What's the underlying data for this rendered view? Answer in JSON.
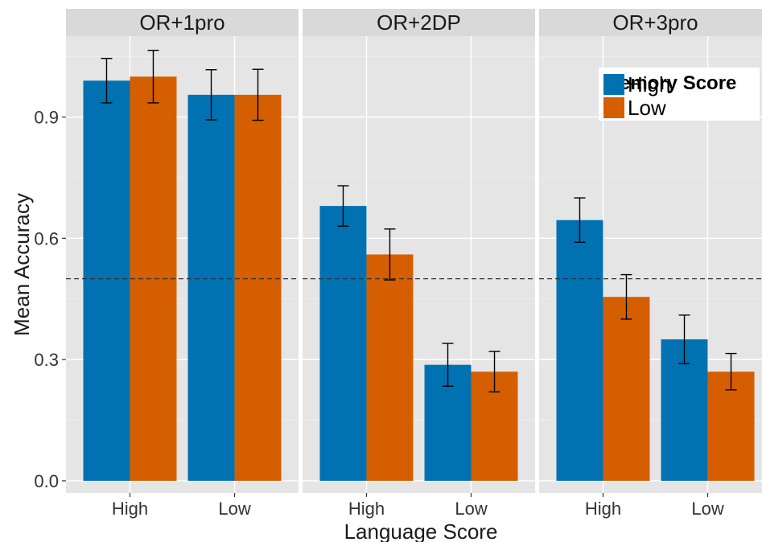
{
  "chart_data": {
    "type": "bar",
    "facets": [
      {
        "label": "OR+1pro",
        "categories": [
          "High",
          "Low"
        ],
        "series": [
          {
            "name": "High",
            "values": [
              0.99,
              0.955
            ],
            "error": [
              0.055,
              0.062
            ]
          },
          {
            "name": "Low",
            "values": [
              1.0,
              0.955
            ],
            "error": [
              0.065,
              0.063
            ]
          }
        ]
      },
      {
        "label": "OR+2DP",
        "categories": [
          "High",
          "Low"
        ],
        "series": [
          {
            "name": "High",
            "values": [
              0.68,
              0.287
            ],
            "error": [
              0.05,
              0.053
            ]
          },
          {
            "name": "Low",
            "values": [
              0.56,
              0.27
            ],
            "error": [
              0.063,
              0.05
            ]
          }
        ]
      },
      {
        "label": "OR+3pro",
        "categories": [
          "High",
          "Low"
        ],
        "series": [
          {
            "name": "High",
            "values": [
              0.645,
              0.35
            ],
            "error": [
              0.055,
              0.06
            ]
          },
          {
            "name": "Low",
            "values": [
              0.455,
              0.27
            ],
            "error": [
              0.055,
              0.045
            ]
          }
        ]
      }
    ],
    "xlabel": "Language Score",
    "ylabel": "Mean Accuracy",
    "ylim": [
      -0.03,
      1.1
    ],
    "yticks": [
      "0.0",
      "0.3",
      "0.6",
      "0.9"
    ],
    "reference_line": 0.5,
    "legend": {
      "title": "Memory Score",
      "entries": [
        "High",
        "Low"
      ],
      "position": "top-right"
    },
    "colors": {
      "High": "#0072b2",
      "Low": "#d55e00"
    },
    "grid": true
  }
}
